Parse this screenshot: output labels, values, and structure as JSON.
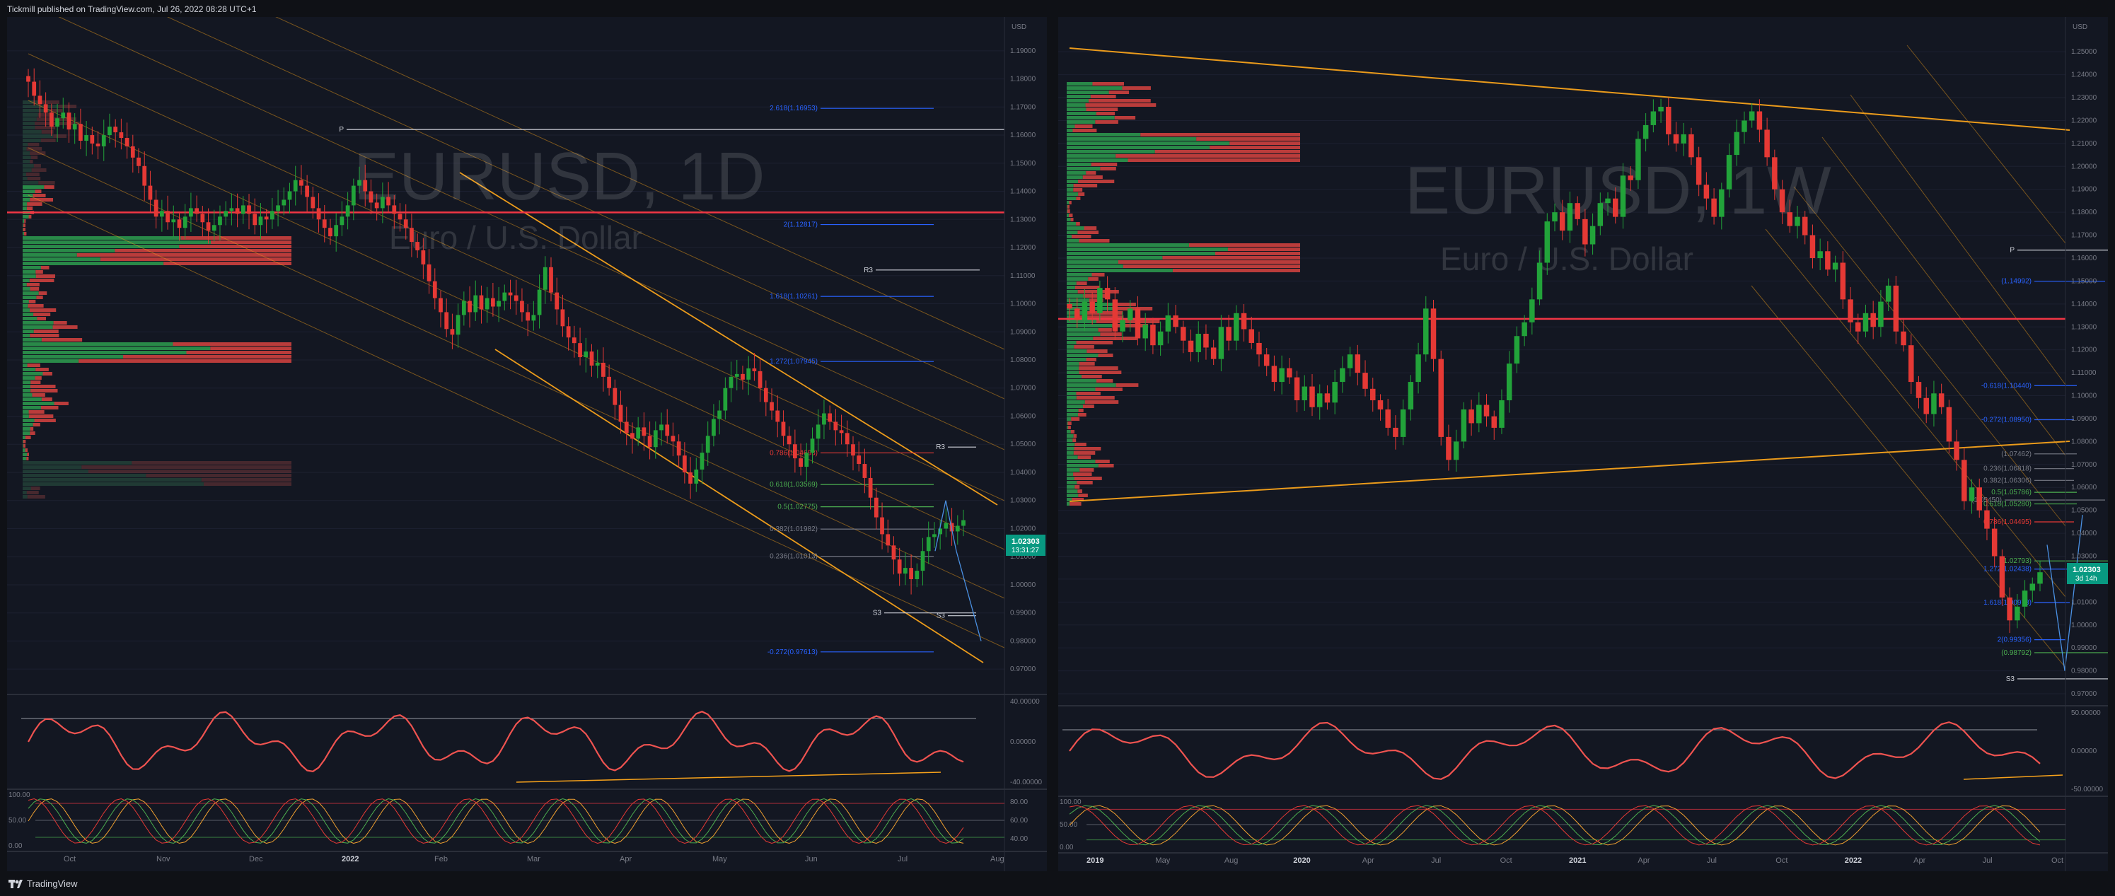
{
  "header": {
    "published_text": "Tickmill published on TradingView.com, Jul 26, 2022 08:28 UTC+1"
  },
  "footer": {
    "brand": "TradingView"
  },
  "colors": {
    "bull": "#22a33a",
    "bear": "#e53935",
    "trendline": "#f7a21b",
    "fib": "#2962ff",
    "pivot": "#000000"
  },
  "chart_data": [
    {
      "type": "candlestick",
      "symbol_text": "EURUSD, 1D",
      "description_text": "Euro / U.S. Dollar",
      "currency": "USD",
      "price_tag": {
        "value": "1.02303",
        "countdown": "13:31:27"
      },
      "ylim": [
        0.963,
        1.197
      ],
      "y_ticks": [
        "1.19000",
        "1.18000",
        "1.17000",
        "1.16000",
        "1.15000",
        "1.14000",
        "1.13000",
        "1.12000",
        "1.11000",
        "1.10000",
        "1.09000",
        "1.08000",
        "1.07000",
        "1.06000",
        "1.05000",
        "1.04000",
        "1.03000",
        "1.02000",
        "1.01000",
        "1.00000",
        "0.99000",
        "0.98000",
        "0.97000"
      ],
      "x_ticks": [
        "Oct",
        "Nov",
        "Dec",
        "2022",
        "Feb",
        "Mar",
        "Apr",
        "May",
        "Jun",
        "Jul",
        "Aug"
      ],
      "close_path": [
        1.179,
        1.174,
        1.171,
        1.168,
        1.163,
        1.166,
        1.168,
        1.162,
        1.164,
        1.158,
        1.16,
        1.157,
        1.156,
        1.16,
        1.163,
        1.161,
        1.159,
        1.156,
        1.152,
        1.149,
        1.142,
        1.137,
        1.131,
        1.133,
        1.129,
        1.13,
        1.127,
        1.131,
        1.134,
        1.132,
        1.129,
        1.126,
        1.128,
        1.131,
        1.133,
        1.134,
        1.132,
        1.135,
        1.132,
        1.128,
        1.131,
        1.13,
        1.133,
        1.135,
        1.137,
        1.14,
        1.144,
        1.142,
        1.138,
        1.134,
        1.13,
        1.127,
        1.124,
        1.128,
        1.131,
        1.135,
        1.142,
        1.144,
        1.14,
        1.136,
        1.134,
        1.138,
        1.135,
        1.132,
        1.13,
        1.127,
        1.122,
        1.119,
        1.114,
        1.108,
        1.102,
        1.097,
        1.091,
        1.089,
        1.096,
        1.101,
        1.097,
        1.103,
        1.098,
        1.102,
        1.099,
        1.101,
        1.104,
        1.103,
        1.101,
        1.097,
        1.094,
        1.096,
        1.105,
        1.113,
        1.104,
        1.098,
        1.092,
        1.088,
        1.086,
        1.081,
        1.083,
        1.078,
        1.079,
        1.074,
        1.07,
        1.064,
        1.058,
        1.054,
        1.052,
        1.056,
        1.053,
        1.049,
        1.055,
        1.057,
        1.053,
        1.051,
        1.046,
        1.04,
        1.036,
        1.041,
        1.047,
        1.053,
        1.059,
        1.062,
        1.07,
        1.074,
        1.075,
        1.073,
        1.077,
        1.076,
        1.07,
        1.065,
        1.062,
        1.058,
        1.053,
        1.05,
        1.045,
        1.042,
        1.047,
        1.052,
        1.057,
        1.061,
        1.058,
        1.055,
        1.054,
        1.05,
        1.046,
        1.043,
        1.038,
        1.031,
        1.024,
        1.018,
        1.014,
        1.009,
        1.004,
        1.006,
        1.002,
        1.005,
        1.012,
        1.017,
        1.018,
        1.02,
        1.022,
        1.019,
        1.021,
        1.023
      ],
      "volume_profile_note": "horizontal green/red volume-by-price histogram on left side",
      "levels": [
        {
          "label": "2.618(1.16953)",
          "value": 1.16953,
          "color": "#2962ff"
        },
        {
          "label": "2(1.12817)",
          "value": 1.12817,
          "color": "#2962ff"
        },
        {
          "label": "1.618(1.10261)",
          "value": 1.10261,
          "color": "#2962ff"
        },
        {
          "label": "1.272(1.07945)",
          "value": 1.07945,
          "color": "#2962ff"
        },
        {
          "label": "0.786(1.04693)",
          "value": 1.04693,
          "color": "#e53935"
        },
        {
          "label": "0.618(1.03569)",
          "value": 1.03569,
          "color": "#4caf50"
        },
        {
          "label": "0.5(1.02775)",
          "value": 1.02775,
          "color": "#4caf50"
        },
        {
          "label": "0.382(1.01982)",
          "value": 1.01982,
          "color": "#787b86"
        },
        {
          "label": "0.236(1.01013)",
          "value": 1.01013,
          "color": "#787b86"
        },
        {
          "label": "-0.272(0.97613)",
          "value": 0.97613,
          "color": "#2962ff"
        }
      ],
      "pivots": [
        {
          "label": "P",
          "value": 1.162
        },
        {
          "label": "R3",
          "value": 1.112
        },
        {
          "label": "R3",
          "value": 1.049
        },
        {
          "label": "S3",
          "value": 0.99
        },
        {
          "label": "S3",
          "value": 0.989
        }
      ],
      "red_resistance": 1.1325,
      "oscillator": {
        "ticks": [
          "40.00000",
          "0.00000",
          "-40.00000"
        ]
      },
      "stochastic": {
        "ticks": [
          "100.00",
          "50.00",
          "0.00"
        ],
        "right_ticks": [
          "80.00",
          "60.00",
          "40.00"
        ]
      }
    },
    {
      "type": "candlestick",
      "symbol_text": "EURUSD, 1W",
      "description_text": "Euro / U.S. Dollar",
      "currency": "USD",
      "price_tag": {
        "value": "1.02303",
        "countdown": "3d 14h"
      },
      "ylim": [
        0.966,
        1.259
      ],
      "y_ticks": [
        "1.25000",
        "1.24000",
        "1.23000",
        "1.22000",
        "1.21000",
        "1.20000",
        "1.19000",
        "1.18000",
        "1.17000",
        "1.16000",
        "1.15000",
        "1.14000",
        "1.13000",
        "1.12000",
        "1.11000",
        "1.10000",
        "1.09000",
        "1.08000",
        "1.07000",
        "1.06000",
        "1.05000",
        "1.04000",
        "1.03000",
        "1.02000",
        "1.01000",
        "1.00000",
        "0.99000",
        "0.98000",
        "0.97000"
      ],
      "x_ticks": [
        "2019",
        "May",
        "Aug",
        "2020",
        "Apr",
        "Jul",
        "Oct",
        "2021",
        "Apr",
        "Jul",
        "Oct",
        "2022",
        "Apr",
        "Jul",
        "Oct"
      ],
      "close_path": [
        1.138,
        1.133,
        1.141,
        1.136,
        1.147,
        1.142,
        1.128,
        1.133,
        1.138,
        1.125,
        1.131,
        1.122,
        1.128,
        1.135,
        1.13,
        1.124,
        1.119,
        1.127,
        1.121,
        1.116,
        1.13,
        1.124,
        1.136,
        1.129,
        1.123,
        1.118,
        1.113,
        1.106,
        1.112,
        1.108,
        1.098,
        1.104,
        1.095,
        1.101,
        1.097,
        1.106,
        1.112,
        1.118,
        1.11,
        1.103,
        1.098,
        1.094,
        1.086,
        1.082,
        1.094,
        1.106,
        1.118,
        1.138,
        1.116,
        1.082,
        1.072,
        1.08,
        1.094,
        1.088,
        1.096,
        1.091,
        1.086,
        1.098,
        1.114,
        1.126,
        1.132,
        1.142,
        1.158,
        1.176,
        1.18,
        1.172,
        1.184,
        1.177,
        1.166,
        1.174,
        1.184,
        1.186,
        1.178,
        1.196,
        1.194,
        1.212,
        1.218,
        1.224,
        1.226,
        1.214,
        1.21,
        1.214,
        1.204,
        1.192,
        1.186,
        1.178,
        1.19,
        1.205,
        1.215,
        1.22,
        1.224,
        1.216,
        1.204,
        1.19,
        1.18,
        1.174,
        1.178,
        1.17,
        1.16,
        1.163,
        1.155,
        1.158,
        1.142,
        1.132,
        1.128,
        1.136,
        1.13,
        1.141,
        1.148,
        1.128,
        1.122,
        1.106,
        1.099,
        1.092,
        1.101,
        1.095,
        1.08,
        1.072,
        1.054,
        1.06,
        1.05,
        1.042,
        1.03,
        1.012,
        1.002,
        1.008,
        1.015,
        1.018,
        1.023
      ],
      "levels": [
        {
          "label": "(1.14992)",
          "value": 1.14992,
          "color": "#2962ff"
        },
        {
          "label": "-0.618(1.10440)",
          "value": 1.1044,
          "color": "#2962ff"
        },
        {
          "label": "-0.272(1.08950)",
          "value": 1.0895,
          "color": "#2962ff"
        },
        {
          "label": "(1.07462)",
          "value": 1.07462,
          "color": "#787b86"
        },
        {
          "label": "0.236(1.06818)",
          "value": 1.06818,
          "color": "#787b86"
        },
        {
          "label": "0.382(1.06306)",
          "value": 1.06306,
          "color": "#787b86"
        },
        {
          "label": "0.5(1.05786)",
          "value": 1.05786,
          "color": "#4caf50"
        },
        {
          "label": "0.618(1.05280)",
          "value": 1.0528,
          "color": "#4caf50"
        },
        {
          "label": "(1.05450)",
          "value": 1.0545,
          "color": "#787b86"
        },
        {
          "label": "0.786(1.04495)",
          "value": 1.04495,
          "color": "#e53935"
        },
        {
          "label": "(1.02793)",
          "value": 1.02793,
          "color": "#4caf50"
        },
        {
          "label": "1.272(1.02438)",
          "value": 1.02438,
          "color": "#2962ff"
        },
        {
          "label": "1.618(1.00973)",
          "value": 1.00973,
          "color": "#2962ff"
        },
        {
          "label": "2(0.99356)",
          "value": 0.99356,
          "color": "#2962ff"
        },
        {
          "label": "(0.98792)",
          "value": 0.98792,
          "color": "#4caf50"
        }
      ],
      "pivots": [
        {
          "label": "P",
          "value": 1.1635
        },
        {
          "label": "S3",
          "value": 0.9765
        }
      ],
      "red_resistance": 1.1335,
      "oscillator": {
        "ticks": [
          "50.00000",
          "0.00000",
          "-50.00000"
        ]
      },
      "stochastic": {
        "ticks": [
          "100.00",
          "50.00",
          "0.00"
        ]
      }
    }
  ]
}
